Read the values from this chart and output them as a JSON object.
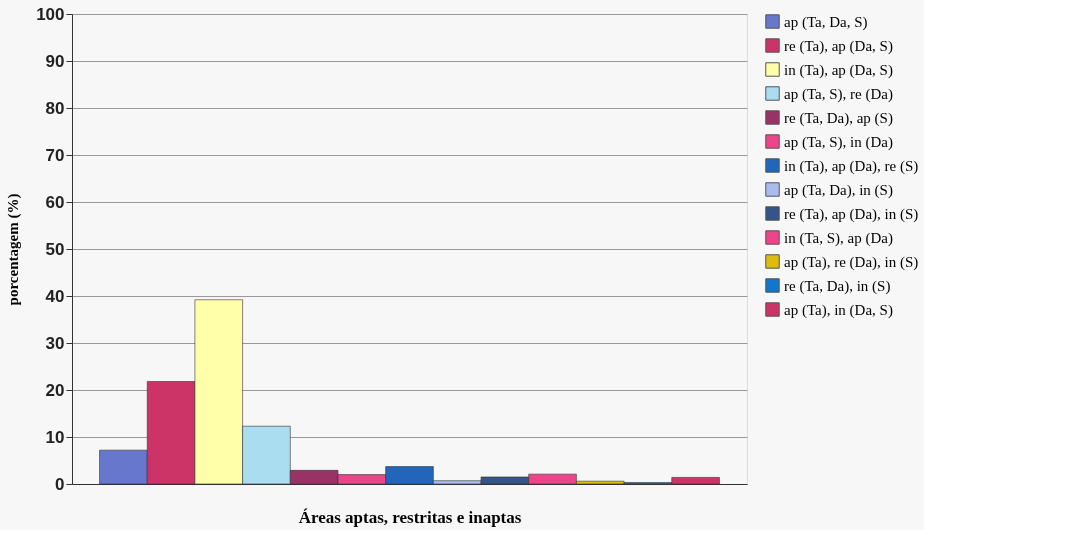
{
  "chart_data": {
    "type": "bar",
    "xlabel": "Áreas aptas, restritas e inaptas",
    "ylabel": "porcentagem (%)",
    "categories": [
      null
    ],
    "series": [
      {
        "name": "ap (Ta, Da, S)",
        "color": "#6677cc",
        "values": [
          7.2
        ]
      },
      {
        "name": "re (Ta), ap (Da, S)",
        "color": "#cc3366",
        "values": [
          21.8
        ]
      },
      {
        "name": "in (Ta), ap (Da, S)",
        "color": "#ffffaa",
        "values": [
          39.2
        ]
      },
      {
        "name": "ap (Ta, S), re (Da)",
        "color": "#aaddf0",
        "values": [
          12.3
        ]
      },
      {
        "name": "re (Ta, Da), ap (S)",
        "color": "#993366",
        "values": [
          2.9
        ]
      },
      {
        "name": "ap (Ta, S), in (Da)",
        "color": "#ee4488",
        "values": [
          2.0
        ]
      },
      {
        "name": "in (Ta), ap (Da), re (S)",
        "color": "#2266bb",
        "values": [
          3.7
        ]
      },
      {
        "name": "ap (Ta, Da), in (S)",
        "color": "#aabbee",
        "values": [
          0.7
        ]
      },
      {
        "name": "re (Ta), ap (Da), in (S)",
        "color": "#335588",
        "values": [
          1.5
        ]
      },
      {
        "name": "in (Ta, S), ap (Da)",
        "color": "#ee4488",
        "values": [
          2.1
        ]
      },
      {
        "name": "ap (Ta), re (Da), in (S)",
        "color": "#ddbb11",
        "values": [
          0.6
        ]
      },
      {
        "name": "re (Ta, Da), in (S)",
        "color": "#1177cc",
        "values": [
          0.3
        ]
      },
      {
        "name": "ap (Ta), in (Da, S)",
        "color": "#cc3366",
        "values": [
          1.4
        ]
      }
    ],
    "ylim": [
      0,
      100
    ],
    "yticks": [
      0,
      10,
      20,
      30,
      40,
      50,
      60,
      70,
      80,
      90,
      100
    ],
    "grid": "y",
    "legend": "right",
    "tick_labels": "y"
  }
}
